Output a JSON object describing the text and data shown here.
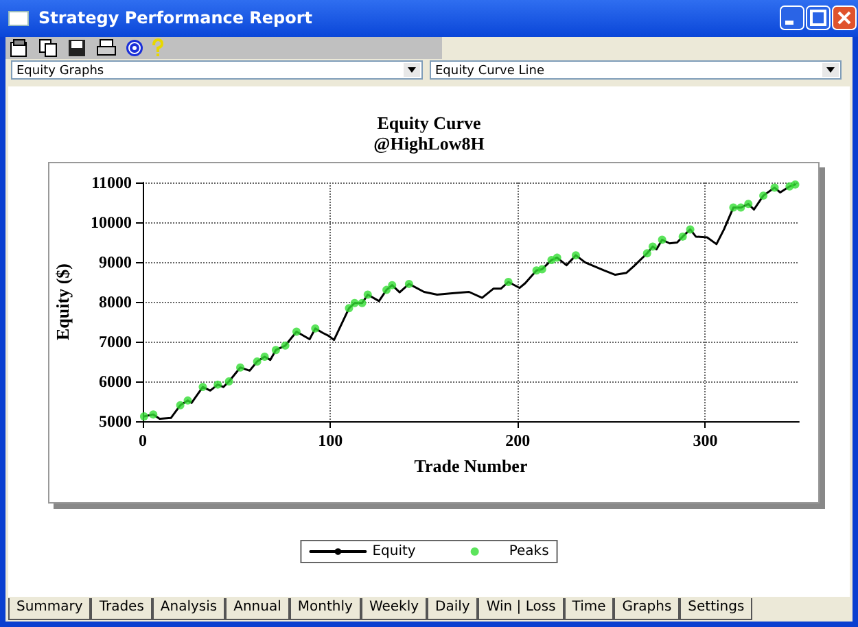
{
  "chart_data": {
    "type": "line",
    "title": "Equity Curve",
    "subtitle": "@HighLow8H",
    "xlabel": "Trade Number",
    "ylabel": "Equity ($)",
    "xlim": [
      0,
      350
    ],
    "xticks": [
      0,
      100,
      200,
      300
    ],
    "ylim": [
      5000,
      11000
    ],
    "yticks": [
      5000,
      6000,
      7000,
      8000,
      9000,
      10000,
      11000
    ],
    "grid": true,
    "legend": "bottom",
    "line_style": "solid",
    "marker": "none",
    "annotations": [
      "Strategy Performance Report",
      "Equity Graphs",
      "Equity Curve Line",
      "Summary",
      "Trades",
      "Analysis",
      "Annual",
      "Monthly",
      "Weekly",
      "Daily",
      "Win | Loss",
      "Time",
      "Graphs",
      "Settings"
    ],
    "series": [
      {
        "name": "Equity",
        "color": "#000000",
        "x": [
          0.7,
          5.6,
          9,
          15,
          20,
          24,
          26,
          32,
          36,
          40,
          43,
          46,
          52,
          57,
          61,
          65,
          68,
          71,
          76,
          82,
          89,
          92,
          96,
          99,
          102,
          110,
          113,
          117,
          120,
          126,
          130,
          133,
          137,
          142,
          150,
          157,
          164,
          174,
          181,
          187,
          191,
          195,
          201,
          204,
          210,
          213,
          218,
          221,
          226,
          231,
          236,
          246,
          252,
          258,
          262,
          269,
          272,
          274,
          277,
          281,
          285,
          288,
          292,
          295,
          301,
          306,
          310,
          315,
          319,
          323,
          326,
          331,
          337,
          340,
          345,
          348
        ],
        "values": [
          5120,
          5170,
          5060,
          5080,
          5400,
          5520,
          5460,
          5860,
          5770,
          5920,
          5860,
          6000,
          6350,
          6270,
          6500,
          6620,
          6540,
          6790,
          6900,
          7250,
          7060,
          7330,
          7220,
          7150,
          7040,
          7840,
          7970,
          7970,
          8180,
          8020,
          8300,
          8420,
          8240,
          8450,
          8250,
          8180,
          8210,
          8250,
          8100,
          8330,
          8330,
          8500,
          8350,
          8470,
          8790,
          8820,
          9050,
          9110,
          8920,
          9170,
          8990,
          8790,
          8680,
          8730,
          8900,
          9220,
          9390,
          9320,
          9560,
          9470,
          9490,
          9640,
          9820,
          9640,
          9620,
          9450,
          9820,
          10370,
          10370,
          10460,
          10320,
          10670,
          10870,
          10750,
          10900,
          10950
        ]
      },
      {
        "name": "Peaks",
        "type": "scatter",
        "color": "#33dd33",
        "marker": "circle",
        "x": [
          0.7,
          5.6,
          20,
          24,
          32,
          40,
          46,
          52,
          61,
          65,
          71,
          76,
          82,
          92,
          110,
          113,
          117,
          120,
          130,
          133,
          142,
          195,
          210,
          213,
          218,
          221,
          231,
          269,
          272,
          277,
          288,
          292,
          315,
          319,
          323,
          331,
          337,
          345,
          348
        ],
        "values": [
          5120,
          5170,
          5400,
          5520,
          5860,
          5920,
          6000,
          6350,
          6500,
          6620,
          6790,
          6900,
          7250,
          7330,
          7840,
          7970,
          7970,
          8180,
          8300,
          8420,
          8450,
          8500,
          8790,
          8820,
          9050,
          9110,
          9170,
          9220,
          9390,
          9560,
          9640,
          9820,
          10370,
          10370,
          10460,
          10670,
          10870,
          10900,
          10950
        ]
      }
    ]
  }
}
